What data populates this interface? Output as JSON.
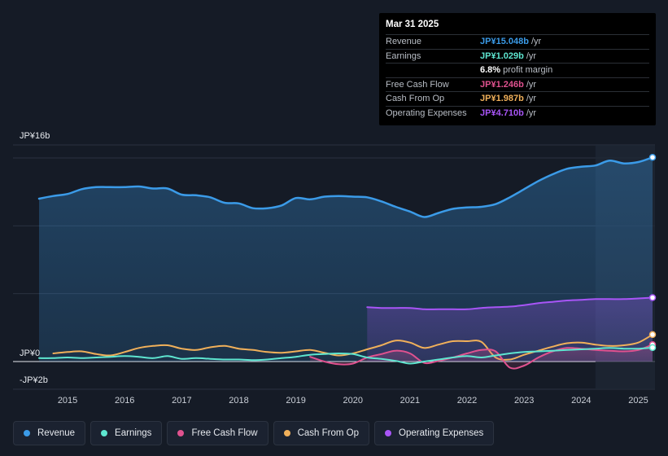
{
  "tooltip": {
    "date": "Mar 31 2025",
    "rows": [
      {
        "label": "Revenue",
        "value": "JP¥15.048b",
        "unit": "/yr",
        "color": "#3b9be8"
      },
      {
        "label": "Earnings",
        "value": "JP¥1.029b",
        "unit": "/yr",
        "color": "#5ee6d0"
      },
      {
        "label": "",
        "value": "6.8%",
        "unit": "profit margin",
        "color": "#ffffff"
      },
      {
        "label": "Free Cash Flow",
        "value": "JP¥1.246b",
        "unit": "/yr",
        "color": "#e0528f"
      },
      {
        "label": "Cash From Op",
        "value": "JP¥1.987b",
        "unit": "/yr",
        "color": "#f0b05a"
      },
      {
        "label": "Operating Expenses",
        "value": "JP¥4.710b",
        "unit": "/yr",
        "color": "#a855f7"
      }
    ]
  },
  "legend": [
    {
      "label": "Revenue",
      "color": "#3b9be8"
    },
    {
      "label": "Earnings",
      "color": "#5ee6d0"
    },
    {
      "label": "Free Cash Flow",
      "color": "#e0528f"
    },
    {
      "label": "Cash From Op",
      "color": "#f0b05a"
    },
    {
      "label": "Operating Expenses",
      "color": "#a855f7"
    }
  ],
  "chart_data": {
    "type": "line",
    "title": "",
    "ylabel_top": "JP¥16b",
    "ylabel_zero": "JP¥0",
    "ylabel_bottom": "-JP¥2b",
    "ylim": [
      -2,
      16
    ],
    "xlim": [
      2014.5,
      2025.25
    ],
    "x_ticks": [
      "2015",
      "2016",
      "2017",
      "2018",
      "2019",
      "2020",
      "2021",
      "2022",
      "2023",
      "2024",
      "2025"
    ],
    "highlight_start": 2024.25,
    "series": [
      {
        "name": "Revenue",
        "color": "#3b9be8",
        "area": true,
        "points": [
          [
            2014.5,
            12.0
          ],
          [
            2014.75,
            12.2
          ],
          [
            2015.0,
            12.35
          ],
          [
            2015.25,
            12.7
          ],
          [
            2015.5,
            12.85
          ],
          [
            2015.75,
            12.85
          ],
          [
            2016.0,
            12.85
          ],
          [
            2016.25,
            12.9
          ],
          [
            2016.5,
            12.75
          ],
          [
            2016.75,
            12.75
          ],
          [
            2017.0,
            12.3
          ],
          [
            2017.25,
            12.25
          ],
          [
            2017.5,
            12.1
          ],
          [
            2017.75,
            11.7
          ],
          [
            2018.0,
            11.65
          ],
          [
            2018.25,
            11.3
          ],
          [
            2018.5,
            11.3
          ],
          [
            2018.75,
            11.5
          ],
          [
            2019.0,
            12.05
          ],
          [
            2019.25,
            11.95
          ],
          [
            2019.5,
            12.15
          ],
          [
            2019.75,
            12.2
          ],
          [
            2020.0,
            12.15
          ],
          [
            2020.25,
            12.1
          ],
          [
            2020.5,
            11.8
          ],
          [
            2020.75,
            11.4
          ],
          [
            2021.0,
            11.05
          ],
          [
            2021.25,
            10.65
          ],
          [
            2021.5,
            10.95
          ],
          [
            2021.75,
            11.25
          ],
          [
            2022.0,
            11.35
          ],
          [
            2022.25,
            11.4
          ],
          [
            2022.5,
            11.6
          ],
          [
            2022.75,
            12.1
          ],
          [
            2023.0,
            12.7
          ],
          [
            2023.25,
            13.3
          ],
          [
            2023.5,
            13.8
          ],
          [
            2023.75,
            14.2
          ],
          [
            2024.0,
            14.35
          ],
          [
            2024.25,
            14.45
          ],
          [
            2024.5,
            14.8
          ],
          [
            2024.75,
            14.6
          ],
          [
            2025.0,
            14.7
          ],
          [
            2025.25,
            15.048
          ]
        ]
      },
      {
        "name": "Operating Expenses",
        "color": "#a855f7",
        "area": true,
        "points": [
          [
            2020.25,
            4.0
          ],
          [
            2020.5,
            3.95
          ],
          [
            2020.75,
            3.95
          ],
          [
            2021.0,
            3.95
          ],
          [
            2021.25,
            3.85
          ],
          [
            2021.5,
            3.85
          ],
          [
            2021.75,
            3.85
          ],
          [
            2022.0,
            3.85
          ],
          [
            2022.25,
            3.95
          ],
          [
            2022.5,
            4.0
          ],
          [
            2022.75,
            4.05
          ],
          [
            2023.0,
            4.15
          ],
          [
            2023.25,
            4.3
          ],
          [
            2023.5,
            4.4
          ],
          [
            2023.75,
            4.5
          ],
          [
            2024.0,
            4.55
          ],
          [
            2024.25,
            4.6
          ],
          [
            2024.5,
            4.6
          ],
          [
            2024.75,
            4.6
          ],
          [
            2025.0,
            4.65
          ],
          [
            2025.25,
            4.71
          ]
        ]
      },
      {
        "name": "Cash From Op",
        "color": "#f0b05a",
        "area": false,
        "points": [
          [
            2014.75,
            0.6
          ],
          [
            2015.0,
            0.7
          ],
          [
            2015.25,
            0.75
          ],
          [
            2015.5,
            0.55
          ],
          [
            2015.75,
            0.45
          ],
          [
            2016.0,
            0.7
          ],
          [
            2016.25,
            1.0
          ],
          [
            2016.5,
            1.15
          ],
          [
            2016.75,
            1.2
          ],
          [
            2017.0,
            0.95
          ],
          [
            2017.25,
            0.85
          ],
          [
            2017.5,
            1.05
          ],
          [
            2017.75,
            1.15
          ],
          [
            2018.0,
            0.95
          ],
          [
            2018.25,
            0.85
          ],
          [
            2018.5,
            0.7
          ],
          [
            2018.75,
            0.65
          ],
          [
            2019.0,
            0.75
          ],
          [
            2019.25,
            0.85
          ],
          [
            2019.5,
            0.65
          ],
          [
            2019.75,
            0.45
          ],
          [
            2020.0,
            0.6
          ],
          [
            2020.25,
            0.9
          ],
          [
            2020.5,
            1.2
          ],
          [
            2020.75,
            1.55
          ],
          [
            2021.0,
            1.4
          ],
          [
            2021.25,
            1.0
          ],
          [
            2021.5,
            1.25
          ],
          [
            2021.75,
            1.5
          ],
          [
            2022.0,
            1.5
          ],
          [
            2022.25,
            1.45
          ],
          [
            2022.5,
            0.3
          ],
          [
            2022.75,
            0.15
          ],
          [
            2023.0,
            0.5
          ],
          [
            2023.25,
            0.8
          ],
          [
            2023.5,
            1.1
          ],
          [
            2023.75,
            1.35
          ],
          [
            2024.0,
            1.4
          ],
          [
            2024.25,
            1.25
          ],
          [
            2024.5,
            1.15
          ],
          [
            2024.75,
            1.2
          ],
          [
            2025.0,
            1.4
          ],
          [
            2025.25,
            1.987
          ]
        ]
      },
      {
        "name": "Free Cash Flow",
        "color": "#e0528f",
        "area": true,
        "points": [
          [
            2019.25,
            0.35
          ],
          [
            2019.5,
            0.0
          ],
          [
            2019.75,
            -0.2
          ],
          [
            2020.0,
            -0.15
          ],
          [
            2020.25,
            0.3
          ],
          [
            2020.5,
            0.55
          ],
          [
            2020.75,
            0.8
          ],
          [
            2021.0,
            0.6
          ],
          [
            2021.25,
            -0.1
          ],
          [
            2021.5,
            0.05
          ],
          [
            2021.75,
            0.3
          ],
          [
            2022.0,
            0.6
          ],
          [
            2022.25,
            0.85
          ],
          [
            2022.5,
            0.75
          ],
          [
            2022.75,
            -0.45
          ],
          [
            2023.0,
            -0.3
          ],
          [
            2023.25,
            0.3
          ],
          [
            2023.5,
            0.75
          ],
          [
            2023.75,
            1.0
          ],
          [
            2024.0,
            0.95
          ],
          [
            2024.25,
            0.85
          ],
          [
            2024.5,
            0.8
          ],
          [
            2024.75,
            0.75
          ],
          [
            2025.0,
            0.85
          ],
          [
            2025.25,
            1.246
          ]
        ]
      },
      {
        "name": "Earnings",
        "color": "#5ee6d0",
        "area": false,
        "points": [
          [
            2014.5,
            0.25
          ],
          [
            2014.75,
            0.25
          ],
          [
            2015.0,
            0.3
          ],
          [
            2015.25,
            0.25
          ],
          [
            2015.5,
            0.3
          ],
          [
            2015.75,
            0.35
          ],
          [
            2016.0,
            0.4
          ],
          [
            2016.25,
            0.35
          ],
          [
            2016.5,
            0.25
          ],
          [
            2016.75,
            0.4
          ],
          [
            2017.0,
            0.2
          ],
          [
            2017.25,
            0.25
          ],
          [
            2017.5,
            0.2
          ],
          [
            2017.75,
            0.15
          ],
          [
            2018.0,
            0.15
          ],
          [
            2018.25,
            0.1
          ],
          [
            2018.5,
            0.15
          ],
          [
            2018.75,
            0.25
          ],
          [
            2019.0,
            0.35
          ],
          [
            2019.25,
            0.5
          ],
          [
            2019.5,
            0.55
          ],
          [
            2019.75,
            0.6
          ],
          [
            2020.0,
            0.55
          ],
          [
            2020.25,
            0.3
          ],
          [
            2020.5,
            0.2
          ],
          [
            2020.75,
            0.05
          ],
          [
            2021.0,
            -0.15
          ],
          [
            2021.25,
            0.0
          ],
          [
            2021.5,
            0.15
          ],
          [
            2021.75,
            0.3
          ],
          [
            2022.0,
            0.4
          ],
          [
            2022.25,
            0.3
          ],
          [
            2022.5,
            0.45
          ],
          [
            2022.75,
            0.6
          ],
          [
            2023.0,
            0.7
          ],
          [
            2023.25,
            0.75
          ],
          [
            2023.5,
            0.8
          ],
          [
            2023.75,
            0.85
          ],
          [
            2024.0,
            0.9
          ],
          [
            2024.25,
            0.95
          ],
          [
            2024.5,
            1.0
          ],
          [
            2024.75,
            0.95
          ],
          [
            2025.0,
            0.95
          ],
          [
            2025.25,
            1.029
          ]
        ]
      }
    ]
  }
}
